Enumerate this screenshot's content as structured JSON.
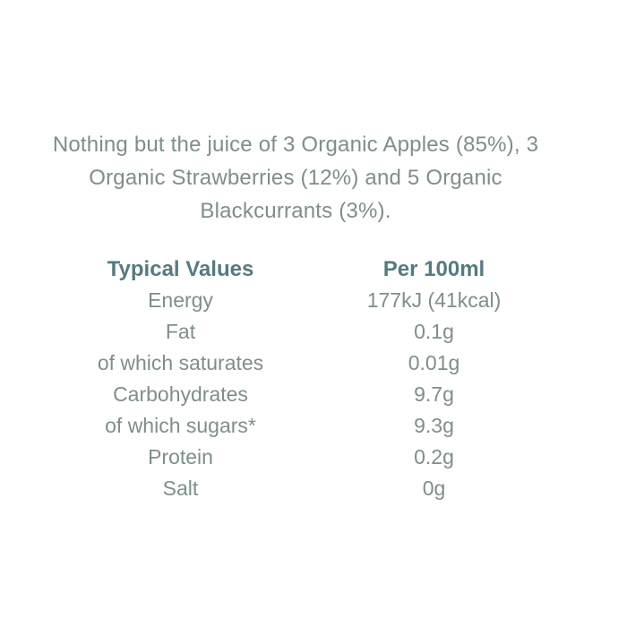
{
  "description": {
    "text": "Nothing but the juice of 3 Organic Apples (85%), 3 Organic Strawberries (12%) and 5 Organic Blackcurrants (3%)."
  },
  "nutrition_table": {
    "headers": [
      "Typical Values",
      "Per 100ml"
    ],
    "rows": [
      {
        "label": "Energy",
        "value": "177kJ (41kcal)"
      },
      {
        "label": "Fat",
        "value": "0.1g"
      },
      {
        "label": "of which saturates",
        "value": "0.01g"
      },
      {
        "label": "Carbohydrates",
        "value": "9.7g"
      },
      {
        "label": "of which sugars*",
        "value": "9.3g"
      },
      {
        "label": "Protein",
        "value": "0.2g"
      },
      {
        "label": "Salt",
        "value": "0g"
      }
    ]
  },
  "colors": {
    "background": "#ffffff",
    "body_text": "#7e8e8c",
    "header_text": "#567a80"
  }
}
